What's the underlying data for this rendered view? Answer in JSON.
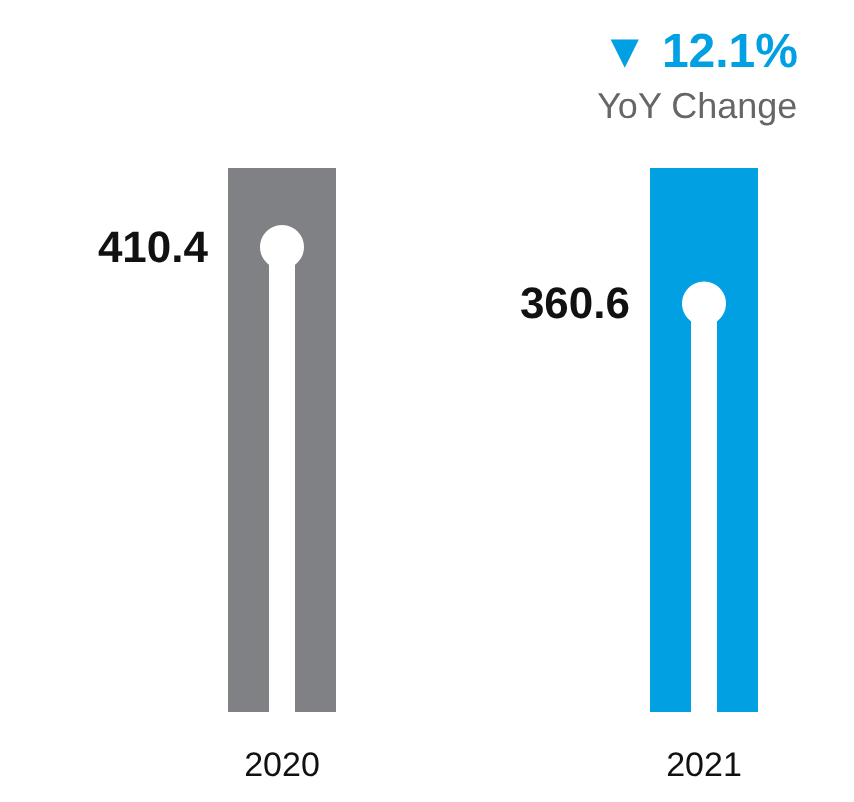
{
  "chart_data": {
    "type": "lollipop",
    "categories": [
      "2020",
      "2021"
    ],
    "values": [
      410.4,
      360.6
    ],
    "color": "#ffffff",
    "bands": [
      {
        "axis": "x",
        "from": "2020",
        "to": "2020",
        "color": "#808184"
      },
      {
        "axis": "x",
        "from": "2021",
        "to": "2021",
        "color": "#00a0e3"
      }
    ],
    "data_labels": true,
    "annotations": [
      "▼ 12.1%",
      "YoY Change"
    ]
  }
}
